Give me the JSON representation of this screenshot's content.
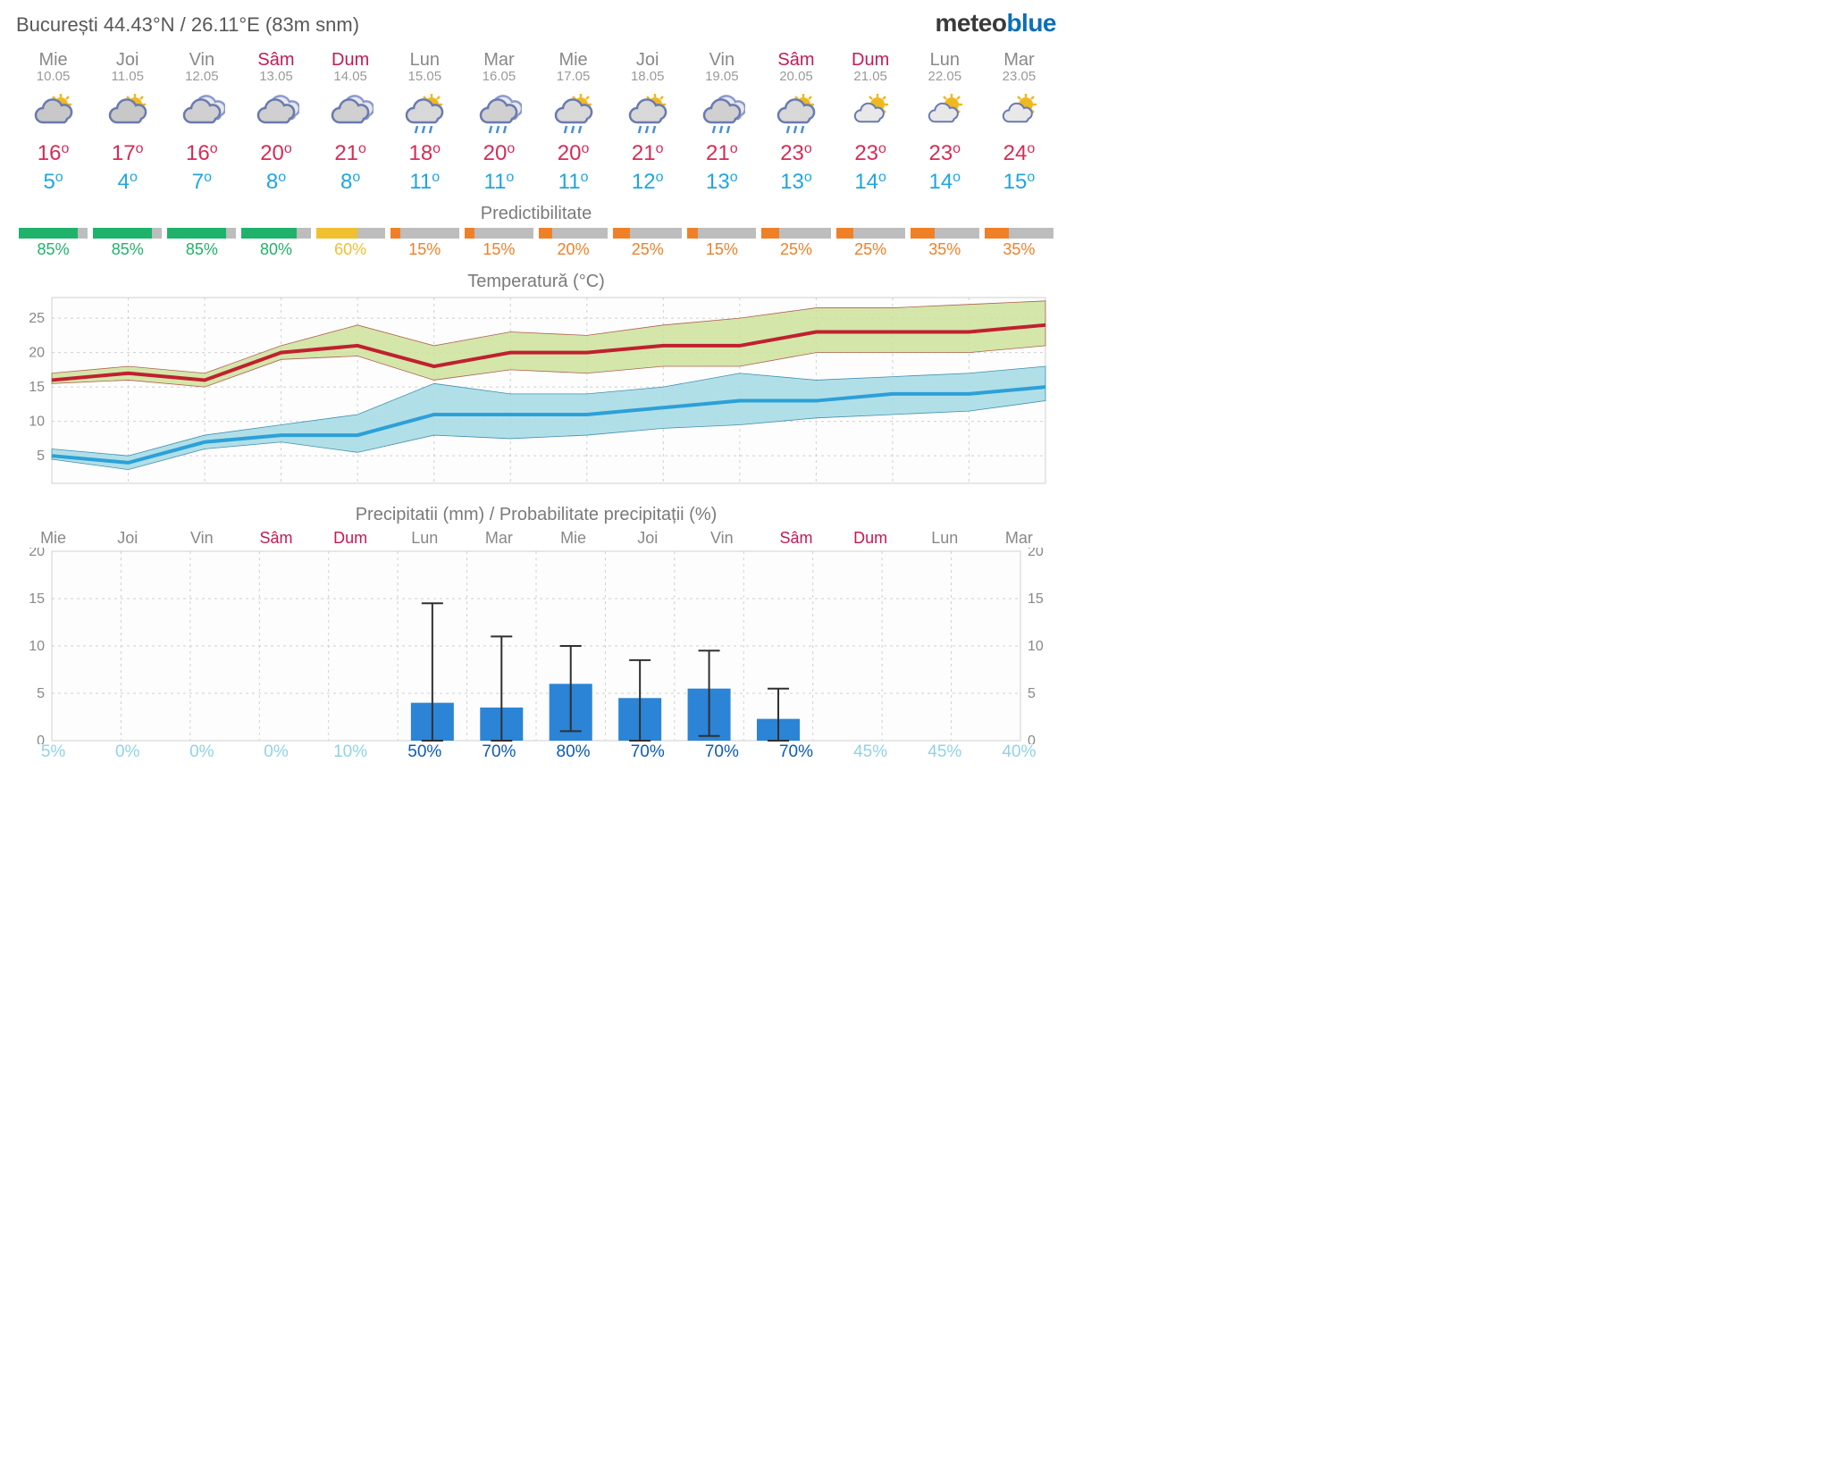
{
  "header": {
    "location": "București  44.43°N / 26.11°E (83m snm)",
    "logo_a": "meteo",
    "logo_b": "blue"
  },
  "labels": {
    "predict": "Predictibilitate",
    "temp_chart": "Temperatură (°C)",
    "precip_chart": "Precipitatii (mm) / Probabilitate precipitații (%)"
  },
  "colors": {
    "bg": "#ffffff",
    "text": "#585858",
    "weekday": "#888888",
    "weekend": "#c21b56",
    "date": "#9a9a9a",
    "temp_hi": "#d52c56",
    "temp_lo": "#1fa6e0",
    "grid": "#d0d0d0",
    "axis": "#888888",
    "hi_line": "#c02030",
    "hi_band": "#cde29a",
    "lo_line": "#2ca0d8",
    "lo_band": "#a8dce6",
    "precip_bar": "#2b84d6",
    "prob_lo": "#8fd3e6",
    "prob_hi": "#0a5bb8",
    "pred_green": "#1fb26a",
    "pred_yellow": "#f0c030",
    "pred_orange": "#f08028",
    "pred_gray": "#bdbdbd"
  },
  "days": [
    {
      "name": "Mie",
      "date": "10.05",
      "weekend": false,
      "icon": "partly",
      "hi": 16,
      "lo": 5,
      "pred": 85,
      "pred_color": "green",
      "pred_text": "green",
      "precip": 0,
      "plo": 0,
      "phi": 0,
      "prob": 5
    },
    {
      "name": "Joi",
      "date": "11.05",
      "weekend": false,
      "icon": "partly",
      "hi": 17,
      "lo": 4,
      "pred": 85,
      "pred_color": "green",
      "pred_text": "green",
      "precip": 0,
      "plo": 0,
      "phi": 0,
      "prob": 0
    },
    {
      "name": "Vin",
      "date": "12.05",
      "weekend": false,
      "icon": "cloudy",
      "hi": 16,
      "lo": 7,
      "pred": 85,
      "pred_color": "green",
      "pred_text": "green",
      "precip": 0,
      "plo": 0,
      "phi": 0,
      "prob": 0
    },
    {
      "name": "Sâm",
      "date": "13.05",
      "weekend": true,
      "icon": "cloudy",
      "hi": 20,
      "lo": 8,
      "pred": 80,
      "pred_color": "green",
      "pred_text": "green",
      "precip": 0,
      "plo": 0,
      "phi": 0,
      "prob": 0
    },
    {
      "name": "Dum",
      "date": "14.05",
      "weekend": true,
      "icon": "cloudy",
      "hi": 21,
      "lo": 8,
      "pred": 60,
      "pred_color": "yellow",
      "pred_text": "yellow",
      "precip": 0,
      "plo": 0,
      "phi": 0,
      "prob": 10
    },
    {
      "name": "Lun",
      "date": "15.05",
      "weekend": false,
      "icon": "sunrain",
      "hi": 18,
      "lo": 11,
      "pred": 15,
      "pred_color": "orange",
      "pred_text": "orange",
      "precip": 4.0,
      "plo": 0,
      "phi": 14.5,
      "prob": 50
    },
    {
      "name": "Mar",
      "date": "16.05",
      "weekend": false,
      "icon": "rain",
      "hi": 20,
      "lo": 11,
      "pred": 15,
      "pred_color": "orange",
      "pred_text": "orange",
      "precip": 3.5,
      "plo": 0,
      "phi": 11,
      "prob": 70
    },
    {
      "name": "Mie",
      "date": "17.05",
      "weekend": false,
      "icon": "sunrain",
      "hi": 20,
      "lo": 11,
      "pred": 20,
      "pred_color": "orange",
      "pred_text": "orange",
      "precip": 6.0,
      "plo": 1,
      "phi": 10,
      "prob": 80
    },
    {
      "name": "Joi",
      "date": "18.05",
      "weekend": false,
      "icon": "sunrain",
      "hi": 21,
      "lo": 12,
      "pred": 25,
      "pred_color": "orange",
      "pred_text": "orange",
      "precip": 4.5,
      "plo": 0,
      "phi": 8.5,
      "prob": 70
    },
    {
      "name": "Vin",
      "date": "19.05",
      "weekend": false,
      "icon": "rain",
      "hi": 21,
      "lo": 13,
      "pred": 15,
      "pred_color": "orange",
      "pred_text": "orange",
      "precip": 5.5,
      "plo": 0.5,
      "phi": 9.5,
      "prob": 70
    },
    {
      "name": "Sâm",
      "date": "20.05",
      "weekend": true,
      "icon": "sunrain",
      "hi": 23,
      "lo": 13,
      "pred": 25,
      "pred_color": "orange",
      "pred_text": "orange",
      "precip": 2.3,
      "plo": 0,
      "phi": 5.5,
      "prob": 70
    },
    {
      "name": "Dum",
      "date": "21.05",
      "weekend": true,
      "icon": "suncloud",
      "hi": 23,
      "lo": 14,
      "pred": 25,
      "pred_color": "orange",
      "pred_text": "orange",
      "precip": 0,
      "plo": 0,
      "phi": 0,
      "prob": 45
    },
    {
      "name": "Lun",
      "date": "22.05",
      "weekend": false,
      "icon": "suncloud",
      "hi": 23,
      "lo": 14,
      "pred": 35,
      "pred_color": "orange",
      "pred_text": "orange",
      "precip": 0,
      "plo": 0,
      "phi": 0,
      "prob": 45
    },
    {
      "name": "Mar",
      "date": "23.05",
      "weekend": false,
      "icon": "suncloud",
      "hi": 24,
      "lo": 15,
      "pred": 35,
      "pred_color": "orange",
      "pred_text": "orange",
      "precip": 0,
      "plo": 0,
      "phi": 0,
      "prob": 40
    }
  ],
  "temp_chart": {
    "ymin": 1,
    "ymax": 28,
    "yticks": [
      5,
      10,
      15,
      20,
      25
    ],
    "hi_upper": [
      17,
      18,
      17,
      21,
      24,
      21,
      23,
      22.5,
      24,
      25,
      26.5,
      26.5,
      27,
      27.5
    ],
    "hi": [
      16,
      17,
      16,
      20,
      21,
      18,
      20,
      20,
      21,
      21,
      23,
      23,
      23,
      24
    ],
    "hi_lower": [
      15.5,
      16,
      15,
      19,
      19.5,
      16,
      17.5,
      17,
      18,
      18,
      20,
      20,
      20,
      21
    ],
    "lo_upper": [
      6,
      5,
      8,
      9.5,
      11,
      15.5,
      14,
      14,
      15,
      17,
      16,
      16.5,
      17,
      18
    ],
    "lo": [
      5,
      4,
      7,
      8,
      8,
      11,
      11,
      11,
      12,
      13,
      13,
      14,
      14,
      15
    ],
    "lo_lower": [
      4.5,
      3,
      6,
      7,
      5.5,
      8,
      7.5,
      8,
      9,
      9.5,
      10.5,
      11,
      11.5,
      13
    ]
  },
  "precip_chart": {
    "ymin": 0,
    "ymax": 20,
    "yticks": [
      0,
      5,
      10,
      15,
      20
    ]
  }
}
